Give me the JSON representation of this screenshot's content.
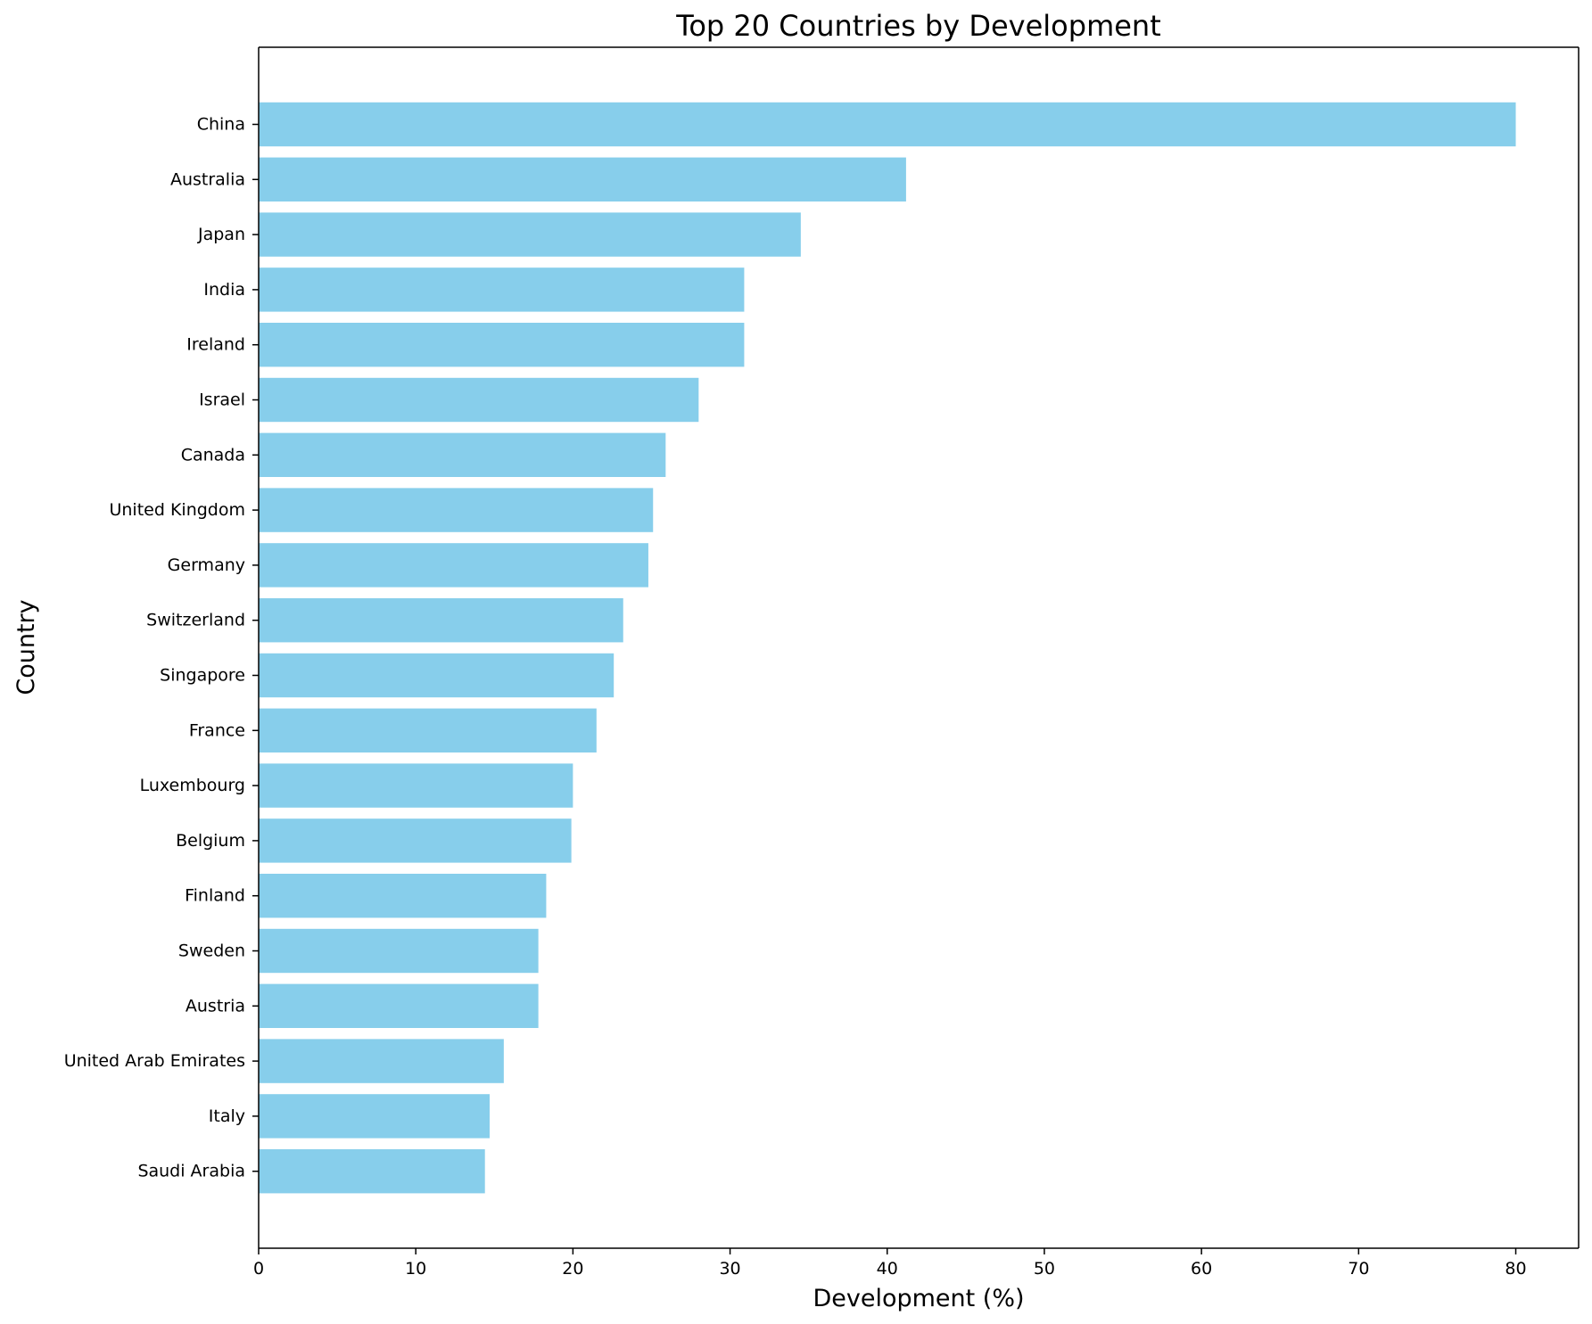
{
  "chart_data": {
    "type": "bar",
    "orientation": "horizontal",
    "title": "Top 20 Countries by Development",
    "xlabel": "Development (%)",
    "ylabel": "Country",
    "xlim": [
      0,
      84
    ],
    "xticks": [
      0,
      10,
      20,
      30,
      40,
      50,
      60,
      70,
      80
    ],
    "grid": false,
    "legend": "none",
    "bar_color": "#87ceeb",
    "categories": [
      "China",
      "Australia",
      "Japan",
      "India",
      "Ireland",
      "Israel",
      "Canada",
      "United Kingdom",
      "Germany",
      "Switzerland",
      "Singapore",
      "France",
      "Luxembourg",
      "Belgium",
      "Finland",
      "Sweden",
      "Austria",
      "United Arab Emirates",
      "Italy",
      "Saudi Arabia"
    ],
    "values": [
      80.0,
      41.2,
      34.5,
      30.9,
      30.9,
      28.0,
      25.9,
      25.1,
      24.8,
      23.2,
      22.6,
      21.5,
      20.0,
      19.9,
      18.3,
      17.8,
      17.8,
      15.6,
      14.7,
      14.4
    ]
  }
}
